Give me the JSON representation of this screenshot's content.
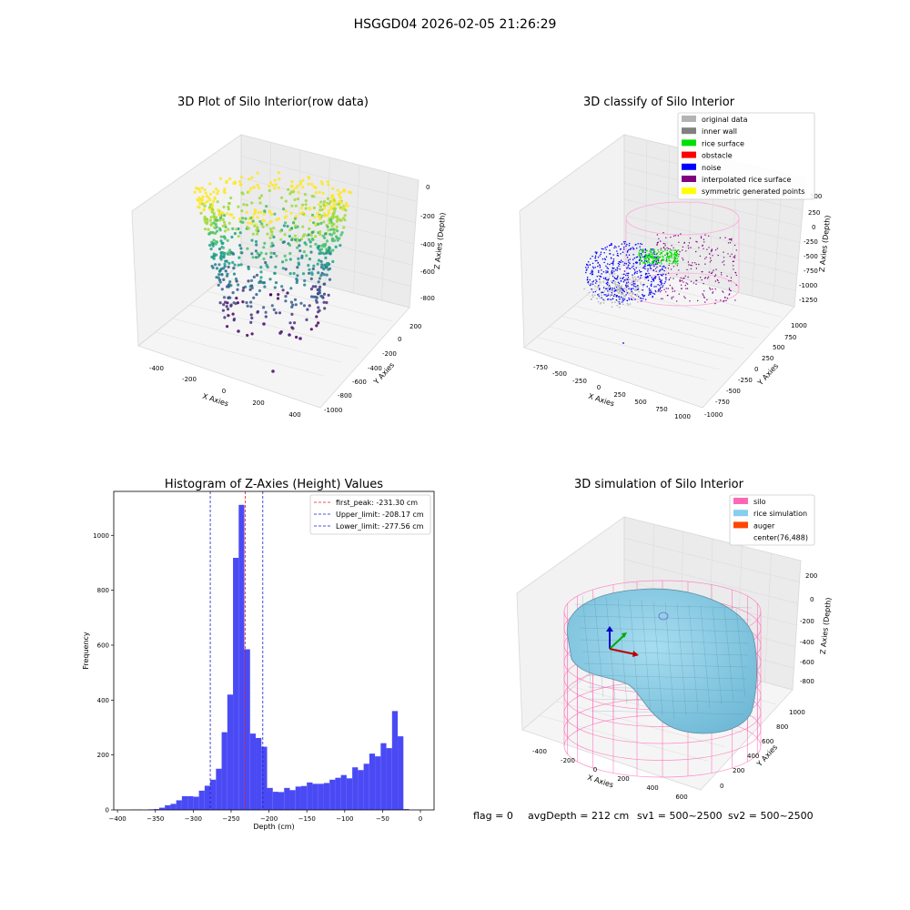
{
  "figure": {
    "suptitle": "HSGGD04 2026-02-05 21:26:29",
    "status": {
      "flag": "flag = 0",
      "avg_depth": "avgDepth = 212 cm",
      "sv1": "sv1 = 500~2500",
      "sv2": "sv2 = 500~2500"
    }
  },
  "colors": {
    "histogram_bar": "#4a4af5",
    "first_peak": "#e31a1c",
    "limit_line": "#1a1ad6",
    "silo": "#ff69b4",
    "rice": "#87ceeb",
    "auger": "#ff4500"
  },
  "panels": {
    "raw": {
      "title": "3D Plot of Silo Interior(row data)",
      "xlabel": "X Axies",
      "ylabel": "Y Axies",
      "zlabel": "Z Axies (Depth)",
      "xticks": [
        "-400",
        "-200",
        "0",
        "200",
        "400"
      ],
      "yticks": [
        "200",
        "0",
        "-200",
        "-400",
        "-600",
        "-800",
        "-1000"
      ],
      "zticks": [
        "0",
        "-200",
        "-400",
        "-600",
        "-800"
      ]
    },
    "classify": {
      "title": "3D classify of Silo Interior",
      "xlabel": "X Axies",
      "ylabel": "Y Axies",
      "zlabel": "Z Axies (Depth)",
      "xticks": [
        "-750",
        "-500",
        "-250",
        "0",
        "250",
        "500",
        "750",
        "1000"
      ],
      "yticks": [
        "1000",
        "750",
        "500",
        "250",
        "0",
        "-250",
        "-500",
        "-750",
        "-1000"
      ],
      "zticks": [
        "500",
        "250",
        "0",
        "-250",
        "-500",
        "-750",
        "-1000",
        "-1250"
      ],
      "legend": [
        {
          "label": "original data",
          "color": "#b3b3b3"
        },
        {
          "label": "inner wall",
          "color": "#808080"
        },
        {
          "label": "rice surface",
          "color": "#00e000"
        },
        {
          "label": "obstacle",
          "color": "#ff0000"
        },
        {
          "label": "noise",
          "color": "#0000ff"
        },
        {
          "label": "interpolated rice surface",
          "color": "#800080"
        },
        {
          "label": "symmetric generated points",
          "color": "#ffff00"
        }
      ]
    },
    "simulation": {
      "title": "3D simulation of Silo Interior",
      "xlabel": "X Axies",
      "ylabel": "Y Axies",
      "zlabel": "Z Axies (Depth)",
      "xticks": [
        "-400",
        "-200",
        "0",
        "200",
        "400",
        "600"
      ],
      "yticks": [
        "1000",
        "800",
        "600",
        "400",
        "200",
        "0"
      ],
      "zticks": [
        "200",
        "0",
        "-200",
        "-400",
        "-600",
        "-800"
      ],
      "legend": [
        {
          "label": "silo",
          "color": "#ff69b4"
        },
        {
          "label": "rice simulation",
          "color": "#87ceeb"
        },
        {
          "label": "auger",
          "color": "#ff4500"
        },
        {
          "label": "center(76,488)",
          "color": ""
        }
      ]
    }
  },
  "chart_data": {
    "type": "bar",
    "title": "Histogram of Z-Axies (Height) Values",
    "xlabel": "Depth (cm)",
    "ylabel": "Frequency",
    "xlim": [
      -405,
      18
    ],
    "ylim": [
      0,
      1160
    ],
    "xticks": [
      -400,
      -350,
      -300,
      -250,
      -200,
      -150,
      -100,
      -50,
      0
    ],
    "yticks": [
      0,
      200,
      400,
      600,
      800,
      1000
    ],
    "bin_width": 7.5,
    "bins": [
      {
        "x0": -382.5,
        "count": 1
      },
      {
        "x0": -375,
        "count": 1
      },
      {
        "x0": -367.5,
        "count": 0
      },
      {
        "x0": -360,
        "count": 2
      },
      {
        "x0": -352.5,
        "count": 3
      },
      {
        "x0": -345,
        "count": 8
      },
      {
        "x0": -337.5,
        "count": 17
      },
      {
        "x0": -330,
        "count": 22
      },
      {
        "x0": -322.5,
        "count": 35
      },
      {
        "x0": -315,
        "count": 50
      },
      {
        "x0": -307.5,
        "count": 50
      },
      {
        "x0": -300,
        "count": 48
      },
      {
        "x0": -292.5,
        "count": 70
      },
      {
        "x0": -285,
        "count": 88
      },
      {
        "x0": -277.5,
        "count": 110
      },
      {
        "x0": -270,
        "count": 150
      },
      {
        "x0": -262.5,
        "count": 283
      },
      {
        "x0": -255,
        "count": 420
      },
      {
        "x0": -247.5,
        "count": 918
      },
      {
        "x0": -240,
        "count": 1111
      },
      {
        "x0": -232.5,
        "count": 585
      },
      {
        "x0": -225,
        "count": 278
      },
      {
        "x0": -217.5,
        "count": 262
      },
      {
        "x0": -210,
        "count": 230
      },
      {
        "x0": -202.5,
        "count": 80
      },
      {
        "x0": -195,
        "count": 66
      },
      {
        "x0": -187.5,
        "count": 65
      },
      {
        "x0": -180,
        "count": 80
      },
      {
        "x0": -172.5,
        "count": 72
      },
      {
        "x0": -165,
        "count": 85
      },
      {
        "x0": -157.5,
        "count": 87
      },
      {
        "x0": -150,
        "count": 100
      },
      {
        "x0": -142.5,
        "count": 95
      },
      {
        "x0": -135,
        "count": 95
      },
      {
        "x0": -127.5,
        "count": 98
      },
      {
        "x0": -120,
        "count": 110
      },
      {
        "x0": -112.5,
        "count": 117
      },
      {
        "x0": -105,
        "count": 127
      },
      {
        "x0": -97.5,
        "count": 115
      },
      {
        "x0": -90,
        "count": 155
      },
      {
        "x0": -82.5,
        "count": 145
      },
      {
        "x0": -75,
        "count": 168
      },
      {
        "x0": -67.5,
        "count": 205
      },
      {
        "x0": -60,
        "count": 195
      },
      {
        "x0": -52.5,
        "count": 243
      },
      {
        "x0": -45,
        "count": 225
      },
      {
        "x0": -37.5,
        "count": 360
      },
      {
        "x0": -30,
        "count": 268
      },
      {
        "x0": -22.5,
        "count": 3
      }
    ],
    "lines": [
      {
        "label": "first_peak: -231.30 cm",
        "x": -231.3,
        "color": "#e31a1c"
      },
      {
        "label": "Upper_limit: -208.17 cm",
        "x": -208.17,
        "color": "#1a1ad6"
      },
      {
        "label": "Lower_limit: -277.56 cm",
        "x": -277.56,
        "color": "#1a1ad6"
      }
    ],
    "legend_position": "top-right",
    "grid": false
  }
}
